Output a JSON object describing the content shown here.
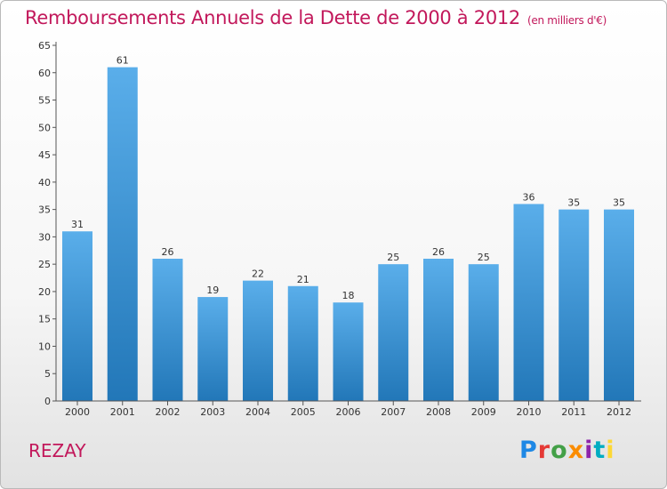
{
  "header": {
    "title": "Remboursements Annuels de la Dette de 2000 à 2012",
    "subtitle": "(en milliers d'€)"
  },
  "footer": {
    "commune": "REZAY",
    "logo_text": "Proxiti",
    "logo_colors": [
      "#1e88e5",
      "#e53935",
      "#43a047",
      "#fb8c00",
      "#8e24aa",
      "#00acc1",
      "#fdd835"
    ]
  },
  "chart_data": {
    "type": "bar",
    "categories": [
      "2000",
      "2001",
      "2002",
      "2003",
      "2004",
      "2005",
      "2006",
      "2007",
      "2008",
      "2009",
      "2010",
      "2011",
      "2012"
    ],
    "values": [
      31,
      61,
      26,
      19,
      22,
      21,
      18,
      25,
      26,
      25,
      36,
      35,
      35
    ],
    "data_labels": [
      "31",
      "61",
      "26",
      "19",
      "22",
      "21",
      "18",
      "25",
      "26",
      "25",
      "36",
      "35",
      "35"
    ],
    "yticks": [
      "0",
      "5",
      "10",
      "15",
      "20",
      "25",
      "30",
      "35",
      "40",
      "45",
      "50",
      "55",
      "60",
      "65"
    ],
    "ylim": [
      0,
      65
    ],
    "grid": false,
    "bar_color_top": "#5aaeea",
    "bar_color_bottom": "#2277b8"
  }
}
